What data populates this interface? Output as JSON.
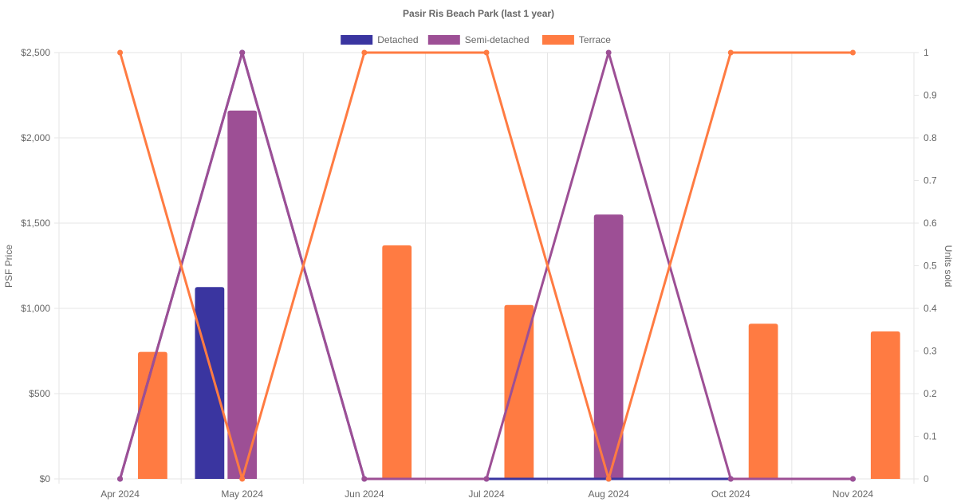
{
  "chart_data": {
    "type": "bar",
    "title": "Pasir Ris Beach Park (last 1 year)",
    "categories": [
      "Apr 2024",
      "May 2024",
      "Jun 2024",
      "Jul 2024",
      "Aug 2024",
      "Oct 2024",
      "Nov 2024"
    ],
    "y_left": {
      "label": "PSF Price",
      "min": 0,
      "max": 2500,
      "ticks": [
        0,
        500,
        1000,
        1500,
        2000,
        2500
      ],
      "tick_labels": [
        "$0",
        "$500",
        "$1,000",
        "$1,500",
        "$2,000",
        "$2,500"
      ]
    },
    "y_right": {
      "label": "Units sold",
      "min": 0,
      "max": 1,
      "ticks": [
        0,
        0.1,
        0.2,
        0.3,
        0.4,
        0.5,
        0.6,
        0.7,
        0.8,
        0.9,
        1
      ],
      "tick_labels": [
        "0",
        "0.1",
        "0.2",
        "0.3",
        "0.4",
        "0.5",
        "0.6",
        "0.7",
        "0.8",
        "0.9",
        "1"
      ]
    },
    "legend": [
      "Detached",
      "Semi-detached",
      "Terrace"
    ],
    "legend_position": "top",
    "grid": true,
    "bar_series": [
      {
        "name": "Detached",
        "color": "#3a35a0",
        "values": [
          null,
          1125,
          null,
          null,
          null,
          null,
          null
        ]
      },
      {
        "name": "Semi-detached",
        "color": "#9d4f95",
        "values": [
          null,
          2160,
          null,
          null,
          1550,
          null,
          null
        ]
      },
      {
        "name": "Terrace",
        "color": "#ff7b42",
        "values": [
          745,
          null,
          1370,
          1020,
          null,
          910,
          865
        ]
      }
    ],
    "line_series": [
      {
        "name": "Detached",
        "color": "#3a35a0",
        "values": [
          0,
          1,
          0,
          0,
          0,
          0,
          0
        ]
      },
      {
        "name": "Semi-detached",
        "color": "#9d4f95",
        "values": [
          0,
          1,
          0,
          0,
          1,
          0,
          0
        ]
      },
      {
        "name": "Terrace",
        "color": "#ff7b42",
        "values": [
          1,
          0,
          1,
          1,
          0,
          1,
          1
        ]
      }
    ]
  }
}
